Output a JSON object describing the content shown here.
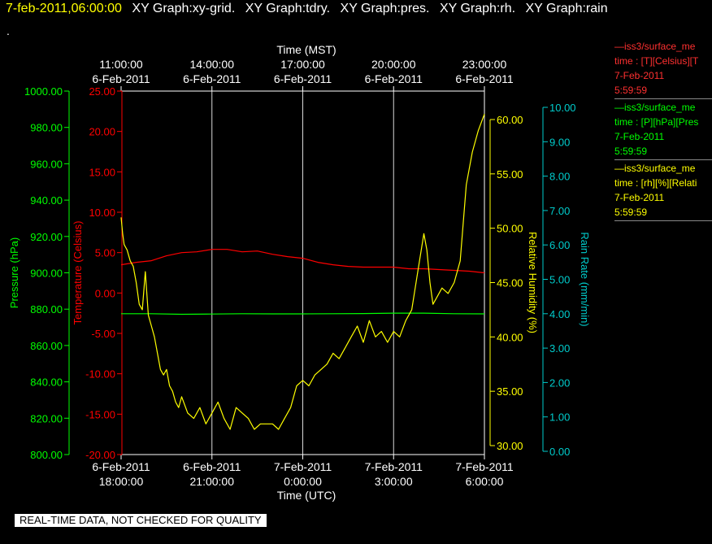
{
  "header": {
    "timestamp": "7-feb-2011,06:00:00",
    "graphs": [
      "XY Graph:xy-grid.",
      "XY Graph:tdry.",
      "XY Graph:pres.",
      "XY Graph:rh.",
      "XY Graph:rain"
    ],
    "dot": "."
  },
  "legend": [
    {
      "lines": [
        "—iss3/surface_me",
        "time : [T][Celsius][T",
        "7-Feb-2011",
        "5:59:59"
      ],
      "color": "#ff3030"
    },
    {
      "lines": [
        "—iss3/surface_me",
        "time : [P][hPa][Pres",
        "7-Feb-2011",
        "5:59:59"
      ],
      "color": "#00ff00"
    },
    {
      "lines": [
        "—iss3/surface_me",
        "time : [rh][%][Relati",
        "7-Feb-2011",
        "5:59:59"
      ],
      "color": "#ffff00"
    }
  ],
  "banner": "REAL-TIME DATA, NOT CHECKED FOR QUALITY",
  "colors": {
    "temp": "#ff0000",
    "pres": "#00ff00",
    "rh": "#ffff00",
    "rain": "#00cccc",
    "grid": "#ffffff"
  },
  "chart_data": {
    "type": "line",
    "top_axis": {
      "title": "Time (MST)",
      "ticks": [
        {
          "hour": 0,
          "time": "11:00:00",
          "date": "6-Feb-2011"
        },
        {
          "hour": 3,
          "time": "14:00:00",
          "date": "6-Feb-2011"
        },
        {
          "hour": 6,
          "time": "17:00:00",
          "date": "6-Feb-2011"
        },
        {
          "hour": 9,
          "time": "20:00:00",
          "date": "6-Feb-2011"
        },
        {
          "hour": 12,
          "time": "23:00:00",
          "date": "6-Feb-2011"
        }
      ]
    },
    "bottom_axis": {
      "title": "Time (UTC)",
      "ticks": [
        {
          "hour": 0,
          "date": "6-Feb-2011",
          "time": "18:00:00"
        },
        {
          "hour": 3,
          "date": "6-Feb-2011",
          "time": "21:00:00"
        },
        {
          "hour": 6,
          "date": "7-Feb-2011",
          "time": "0:00:00"
        },
        {
          "hour": 9,
          "date": "7-Feb-2011",
          "time": "3:00:00"
        },
        {
          "hour": 12,
          "date": "7-Feb-2011",
          "time": "6:00:00"
        }
      ]
    },
    "y_axes": {
      "pressure": {
        "label": "Pressure (hPa)",
        "min": 800,
        "max": 1000,
        "ticks": [
          "800.00",
          "820.00",
          "840.00",
          "860.00",
          "880.00",
          "900.00",
          "920.00",
          "940.00",
          "960.00",
          "980.00",
          "1000.00"
        ]
      },
      "temperature": {
        "label": "Temperature (Celsius)",
        "min": -20,
        "max": 25,
        "ticks": [
          "-20.00",
          "-15.00",
          "-10.00",
          "-5.00",
          "0.00",
          "5.00",
          "10.00",
          "15.00",
          "20.00",
          "25.00"
        ]
      },
      "rh": {
        "label": "Relative Humidity (%)",
        "min": 30,
        "max": 60,
        "ticks": [
          "30.00",
          "35.00",
          "40.00",
          "45.00",
          "50.00",
          "55.00",
          "60.00"
        ]
      },
      "rain": {
        "label": "Rain Rate (mm/min)",
        "min": 0,
        "max": 10,
        "ticks": [
          "0.00",
          "1.00",
          "2.00",
          "3.00",
          "4.00",
          "5.00",
          "6.00",
          "7.00",
          "8.00",
          "9.00",
          "10.00"
        ]
      }
    },
    "series": [
      {
        "name": "iss3/surface_me T",
        "axis": "temperature",
        "color": "#ff0000",
        "x": [
          0,
          0.5,
          1,
          1.5,
          2,
          2.5,
          3,
          3.5,
          4,
          4.5,
          5,
          5.5,
          6,
          6.5,
          7,
          7.5,
          8,
          8.5,
          9,
          9.5,
          10,
          10.5,
          11,
          11.5,
          12
        ],
        "y": [
          3.5,
          3.8,
          4.0,
          4.6,
          5.0,
          5.1,
          5.4,
          5.4,
          5.1,
          5.2,
          4.8,
          4.5,
          4.3,
          3.8,
          3.5,
          3.3,
          3.2,
          3.2,
          3.2,
          3.0,
          3.0,
          2.9,
          2.8,
          2.7,
          2.5
        ]
      },
      {
        "name": "iss3/surface_me P",
        "axis": "pressure",
        "color": "#00ff00",
        "x": [
          0,
          1,
          2,
          3,
          4,
          5,
          6,
          7,
          8,
          9,
          10,
          11,
          12
        ],
        "y": [
          877.5,
          877.5,
          877.2,
          877.3,
          877.5,
          877.4,
          877.4,
          877.5,
          877.6,
          877.8,
          877.8,
          877.5,
          877.4
        ]
      },
      {
        "name": "iss3/surface_me rh",
        "axis": "rh",
        "color": "#ffff00",
        "x": [
          0,
          0.05,
          0.1,
          0.2,
          0.3,
          0.4,
          0.5,
          0.6,
          0.7,
          0.8,
          0.9,
          1.0,
          1.1,
          1.2,
          1.3,
          1.4,
          1.5,
          1.6,
          1.7,
          1.8,
          1.9,
          2.0,
          2.2,
          2.4,
          2.6,
          2.8,
          3.0,
          3.2,
          3.4,
          3.6,
          3.8,
          4.0,
          4.2,
          4.4,
          4.6,
          4.8,
          5.0,
          5.2,
          5.4,
          5.6,
          5.8,
          6.0,
          6.2,
          6.4,
          6.6,
          6.8,
          7.0,
          7.2,
          7.4,
          7.6,
          7.8,
          8.0,
          8.2,
          8.4,
          8.6,
          8.8,
          9.0,
          9.2,
          9.4,
          9.6,
          9.8,
          10.0,
          10.1,
          10.2,
          10.3,
          10.4,
          10.6,
          10.8,
          11.0,
          11.2,
          11.4,
          11.6,
          11.8,
          12.0
        ],
        "y": [
          51.0,
          49.5,
          48.5,
          48.0,
          47.0,
          46.5,
          45.0,
          43.0,
          42.5,
          46.0,
          42.0,
          41.0,
          40.0,
          38.5,
          37.0,
          36.5,
          37.0,
          35.5,
          35.0,
          34.0,
          33.5,
          34.5,
          33.0,
          32.5,
          33.5,
          32.0,
          33.0,
          34.0,
          32.5,
          31.5,
          33.5,
          33.0,
          32.5,
          31.5,
          32.0,
          32.0,
          32.0,
          31.5,
          32.5,
          33.5,
          35.5,
          36.0,
          35.5,
          36.5,
          37.0,
          37.5,
          38.5,
          38.0,
          39.0,
          40.0,
          41.0,
          39.5,
          41.5,
          40.0,
          40.5,
          39.5,
          40.5,
          40.0,
          41.5,
          42.5,
          46.0,
          49.5,
          48.0,
          45.0,
          43.0,
          43.5,
          44.5,
          44.0,
          45.0,
          47.0,
          54.0,
          57.0,
          59.0,
          60.5
        ]
      }
    ]
  }
}
